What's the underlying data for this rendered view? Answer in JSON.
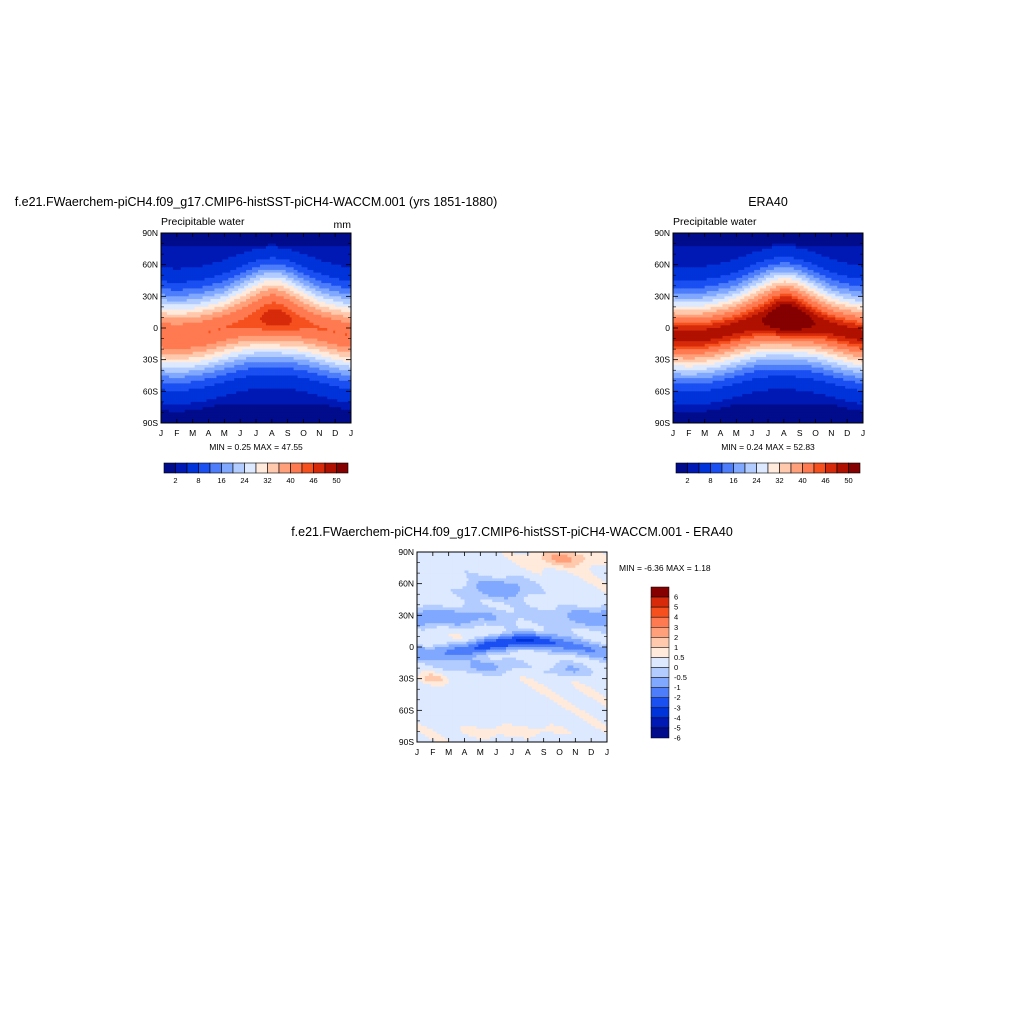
{
  "colors": {
    "abs_palette": [
      "#000c8c",
      "#0019b4",
      "#0033d9",
      "#1a4ff2",
      "#4d7dfa",
      "#80a8ff",
      "#b3ccff",
      "#dde9ff",
      "#ffeadb",
      "#ffc9ad",
      "#ffa07a",
      "#ff7a50",
      "#f5501e",
      "#d62a0a",
      "#b01000",
      "#850000"
    ],
    "diff_palette": [
      "#000c8c",
      "#0019b4",
      "#0033d9",
      "#1a4ff2",
      "#4d7dfa",
      "#80a8ff",
      "#b3ccff",
      "#dde9ff",
      "#ffeadb",
      "#ffc9ad",
      "#ffa07a",
      "#ff7a50",
      "#f5501e",
      "#d62a0a",
      "#850000"
    ]
  },
  "chart_data": [
    {
      "type": "heatmap",
      "title": "f.e21.FWaerchem-piCH4.f09_g17.CMIP6-histSST-piCH4-WACCM.001 (yrs 1851-1880)",
      "subtitle_left": "Precipitable water",
      "subtitle_right": "mm",
      "x_tick_labels": [
        "J",
        "F",
        "M",
        "A",
        "M",
        "J",
        "J",
        "A",
        "S",
        "O",
        "N",
        "D",
        "J"
      ],
      "y_tick_labels": [
        "90N",
        "60N",
        "30N",
        "0",
        "30S",
        "60S",
        "90S"
      ],
      "ylim": [
        -90,
        90
      ],
      "stats_text": "MIN =   0.25 MAX =  47.55",
      "min": 0.25,
      "max": 47.55,
      "colorbar_labels": [
        "2",
        "8",
        "16",
        "24",
        "32",
        "40",
        "46",
        "50"
      ],
      "colorbar_levels": [
        0,
        2,
        4,
        8,
        12,
        16,
        20,
        24,
        28,
        32,
        36,
        40,
        44,
        46,
        48,
        50
      ]
    },
    {
      "type": "heatmap",
      "title": "ERA40",
      "subtitle_left": "Precipitable water",
      "x_tick_labels": [
        "J",
        "F",
        "M",
        "A",
        "M",
        "J",
        "J",
        "A",
        "S",
        "O",
        "N",
        "D",
        "J"
      ],
      "y_tick_labels": [
        "90N",
        "60N",
        "30N",
        "0",
        "30S",
        "60S",
        "90S"
      ],
      "ylim": [
        -90,
        90
      ],
      "stats_text": "MIN =   0.24 MAX =  52.83",
      "min": 0.24,
      "max": 52.83,
      "colorbar_labels": [
        "2",
        "8",
        "16",
        "24",
        "32",
        "40",
        "46",
        "50"
      ],
      "colorbar_levels": [
        0,
        2,
        4,
        8,
        12,
        16,
        20,
        24,
        28,
        32,
        36,
        40,
        44,
        46,
        48,
        50
      ]
    },
    {
      "type": "heatmap",
      "title": "f.e21.FWaerchem-piCH4.f09_g17.CMIP6-histSST-piCH4-WACCM.001 - ERA40",
      "x_tick_labels": [
        "J",
        "F",
        "M",
        "A",
        "M",
        "J",
        "J",
        "A",
        "S",
        "O",
        "N",
        "D",
        "J"
      ],
      "y_tick_labels": [
        "90N",
        "60N",
        "30N",
        "0",
        "30S",
        "60S",
        "90S"
      ],
      "ylim": [
        -90,
        90
      ],
      "stats_text": "MIN =  -6.36 MAX =   1.18",
      "min": -6.36,
      "max": 1.18,
      "colorbar_labels": [
        "6",
        "5",
        "4",
        "3",
        "2",
        "1",
        "0.5",
        "0",
        "-0.5",
        "-1",
        "-2",
        "-3",
        "-4",
        "-5",
        "-6"
      ]
    }
  ]
}
